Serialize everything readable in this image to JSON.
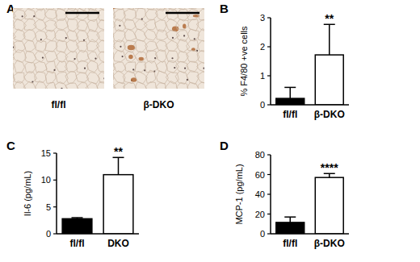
{
  "image_panel": {
    "title": "A",
    "labels": [
      "fl/fl",
      "β-DKO"
    ]
  },
  "chart_data": [
    {
      "type": "bar",
      "title": "B",
      "y_label": "% F4/80 +ve cells",
      "categories": [
        "fl/fl",
        "β-DKO"
      ],
      "values": [
        0.22,
        1.72
      ],
      "errors": [
        0.38,
        1.05
      ],
      "colors": [
        "#000000",
        "#ffffff"
      ],
      "ylim": [
        0,
        3
      ],
      "yticks": [
        0,
        1,
        2,
        3
      ],
      "annotations": [
        {
          "text": "**",
          "category": "β-DKO"
        }
      ]
    },
    {
      "type": "bar",
      "title": "C",
      "y_label": "Il-6 (pg/mL)",
      "categories": [
        "fl/fl",
        "DKO"
      ],
      "values": [
        2.8,
        11.0
      ],
      "errors": [
        0.2,
        3.2
      ],
      "colors": [
        "#000000",
        "#ffffff"
      ],
      "ylim": [
        0,
        15
      ],
      "yticks": [
        0,
        5,
        10,
        15
      ],
      "annotations": [
        {
          "text": "**",
          "category": "DKO"
        }
      ]
    },
    {
      "type": "bar",
      "title": "D",
      "y_label": "MCP-1 (pg/mL)",
      "categories": [
        "fl/fl",
        "β-DKO"
      ],
      "values": [
        11.5,
        57
      ],
      "errors": [
        5.5,
        4
      ],
      "colors": [
        "#000000",
        "#ffffff"
      ],
      "ylim": [
        0,
        80
      ],
      "yticks": [
        0,
        20,
        40,
        60,
        80
      ],
      "annotations": [
        {
          "text": "****",
          "category": "β-DKO"
        }
      ]
    }
  ]
}
